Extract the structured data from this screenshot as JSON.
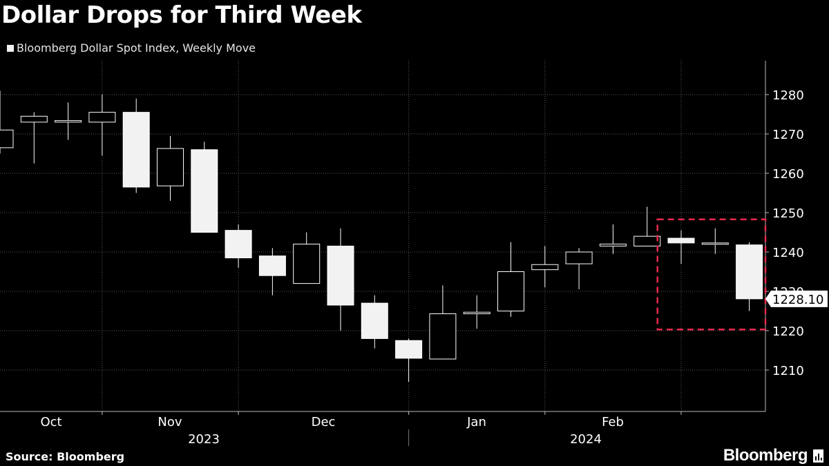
{
  "chart_data": {
    "type": "candlestick",
    "title": "Dollar Drops for Third Week",
    "legend": "Bloomberg Dollar Spot Index, Weekly Move",
    "source": "Source: Bloomberg",
    "brand": "Bloomberg",
    "ylim": [
      1200,
      1288
    ],
    "y_ticks": [
      1210,
      1220,
      1230,
      1240,
      1250,
      1260,
      1270,
      1280
    ],
    "x_month_labels": [
      "Oct",
      "Nov",
      "Dec",
      "Jan",
      "Feb"
    ],
    "x_year_labels": [
      "2023",
      "2024"
    ],
    "last_value_label": "1228.10",
    "last_value": 1228.1,
    "highlight_range": {
      "from_week": 19,
      "to_week": 21,
      "ymin": 1220.3,
      "ymax": 1248.3
    },
    "candles": [
      {
        "o": 1266.5,
        "h": 1281.0,
        "l": 1265.0,
        "c": 1271.0
      },
      {
        "o": 1273.0,
        "h": 1275.5,
        "l": 1262.5,
        "c": 1274.5
      },
      {
        "o": 1273.0,
        "h": 1278.0,
        "l": 1268.5,
        "c": 1273.4
      },
      {
        "o": 1273.0,
        "h": 1280.0,
        "l": 1264.5,
        "c": 1275.5
      },
      {
        "o": 1275.5,
        "h": 1279.0,
        "l": 1255.0,
        "c": 1256.5
      },
      {
        "o": 1256.8,
        "h": 1269.5,
        "l": 1253.0,
        "c": 1266.3
      },
      {
        "o": 1266.0,
        "h": 1268.0,
        "l": 1245.0,
        "c": 1245.0
      },
      {
        "o": 1245.5,
        "h": 1247.0,
        "l": 1236.0,
        "c": 1238.5
      },
      {
        "o": 1239.0,
        "h": 1241.0,
        "l": 1229.0,
        "c": 1234.0
      },
      {
        "o": 1232.0,
        "h": 1245.0,
        "l": 1232.0,
        "c": 1242.0
      },
      {
        "o": 1241.5,
        "h": 1246.0,
        "l": 1220.0,
        "c": 1226.5
      },
      {
        "o": 1227.0,
        "h": 1229.0,
        "l": 1215.5,
        "c": 1218.0
      },
      {
        "o": 1217.5,
        "h": 1218.0,
        "l": 1207.0,
        "c": 1213.0
      },
      {
        "o": 1212.8,
        "h": 1231.5,
        "l": 1212.8,
        "c": 1224.3
      },
      {
        "o": 1224.3,
        "h": 1229.0,
        "l": 1220.5,
        "c": 1224.7
      },
      {
        "o": 1225.0,
        "h": 1242.5,
        "l": 1223.5,
        "c": 1235.0
      },
      {
        "o": 1235.5,
        "h": 1241.5,
        "l": 1231.0,
        "c": 1236.8
      },
      {
        "o": 1237.0,
        "h": 1241.0,
        "l": 1230.5,
        "c": 1240.0
      },
      {
        "o": 1241.5,
        "h": 1247.0,
        "l": 1239.5,
        "c": 1242.0
      },
      {
        "o": 1241.5,
        "h": 1251.5,
        "l": 1241.5,
        "c": 1244.0
      },
      {
        "o": 1243.5,
        "h": 1245.5,
        "l": 1237.0,
        "c": 1242.3
      },
      {
        "o": 1242.0,
        "h": 1246.0,
        "l": 1239.5,
        "c": 1242.3
      },
      {
        "o": 1241.8,
        "h": 1242.5,
        "l": 1225.0,
        "c": 1228.1
      }
    ]
  }
}
